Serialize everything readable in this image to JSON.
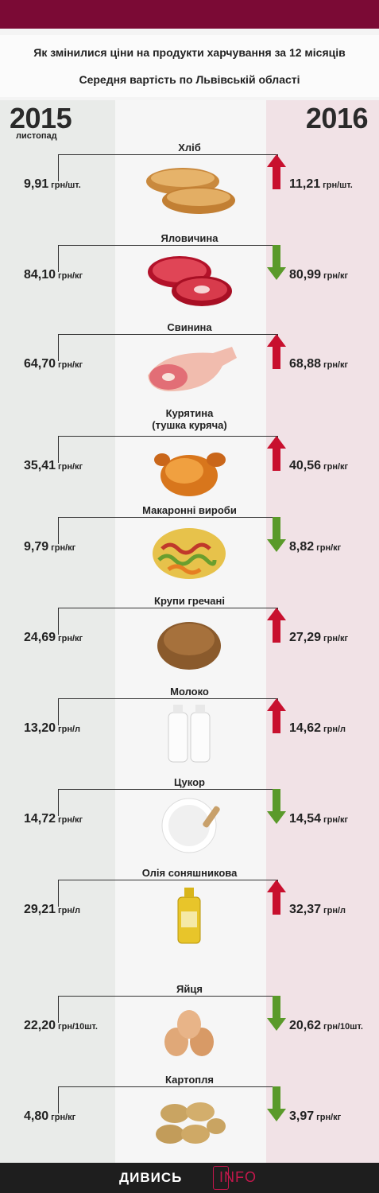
{
  "header": {
    "title": "Як змінилися ціни на продукти харчування за 12 місяців",
    "subtitle": "Середня вартість по Львівській області"
  },
  "years": {
    "left": "2015",
    "left_month": "листопад",
    "right": "2016"
  },
  "colors": {
    "top_bar": "#7b0a35",
    "arrow_up": "#c8102e",
    "arrow_down": "#5a9a2a"
  },
  "products": [
    {
      "name": "Хліб",
      "old_price": "9,91",
      "old_unit": "грн/шт.",
      "new_price": "11,21",
      "new_unit": "грн/шт.",
      "trend": "up",
      "icon": "bread-icon"
    },
    {
      "name": "Яловичина",
      "old_price": "84,10",
      "old_unit": "грн/кг",
      "new_price": "80,99",
      "new_unit": "грн/кг",
      "trend": "down",
      "icon": "beef-icon"
    },
    {
      "name": "Свинина",
      "old_price": "64,70",
      "old_unit": "грн/кг",
      "new_price": "68,88",
      "new_unit": "грн/кг",
      "trend": "up",
      "icon": "pork-icon"
    },
    {
      "name": "Курятина",
      "name2": "(тушка куряча)",
      "old_price": "35,41",
      "old_unit": "грн/кг",
      "new_price": "40,56",
      "new_unit": "грн/кг",
      "trend": "up",
      "icon": "chicken-icon"
    },
    {
      "name": "Макаронні вироби",
      "old_price": "9,79",
      "old_unit": "грн/кг",
      "new_price": "8,82",
      "new_unit": "грн/кг",
      "trend": "down",
      "icon": "pasta-icon"
    },
    {
      "name": "Крупи гречані",
      "old_price": "24,69",
      "old_unit": "грн/кг",
      "new_price": "27,29",
      "new_unit": "грн/кг",
      "trend": "up",
      "icon": "buckwheat-icon"
    },
    {
      "name": "Молоко",
      "old_price": "13,20",
      "old_unit": "грн/л",
      "new_price": "14,62",
      "new_unit": "грн/л",
      "trend": "up",
      "icon": "milk-bottles-icon"
    },
    {
      "name": "Цукор",
      "old_price": "14,72",
      "old_unit": "грн/кг",
      "new_price": "14,54",
      "new_unit": "грн/кг",
      "trend": "down",
      "icon": "sugar-icon"
    },
    {
      "name": "Олія соняшникова",
      "old_price": "29,21",
      "old_unit": "грн/л",
      "new_price": "32,37",
      "new_unit": "грн/л",
      "trend": "up",
      "icon": "oil-bottle-icon"
    },
    {
      "name": "Яйця",
      "old_price": "22,20",
      "old_unit": "грн/10шт.",
      "new_price": "20,62",
      "new_unit": "грн/10шт.",
      "trend": "down",
      "icon": "eggs-icon"
    },
    {
      "name": "Картопля",
      "old_price": "4,80",
      "old_unit": "грн/кг",
      "new_price": "3,97",
      "new_unit": "грн/кг",
      "trend": "down",
      "icon": "potato-icon"
    }
  ],
  "footer": {
    "logo_main": "ДИВИСЬ",
    "logo_accent": "INFO"
  }
}
